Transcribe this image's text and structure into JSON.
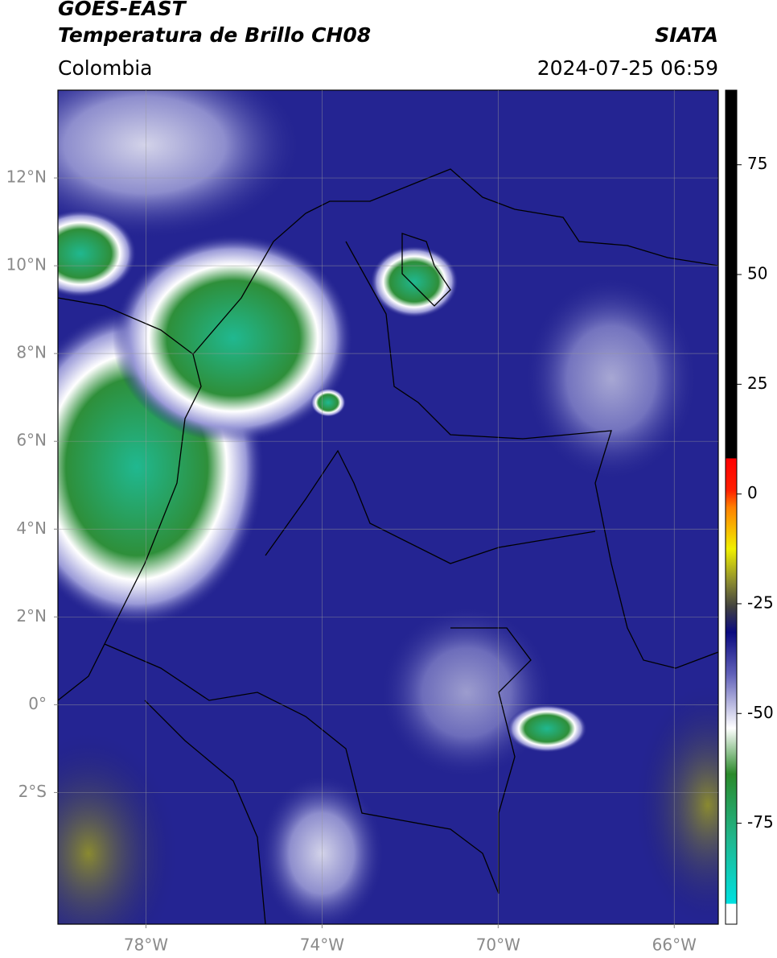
{
  "header": {
    "title": "GOES-EAST",
    "product": "Temperatura de Brillo CH08",
    "region": "Colombia",
    "source": "SIATA",
    "datetime": "2024-07-25 06:59"
  },
  "map": {
    "xlim": [
      -80,
      -65
    ],
    "ylim": [
      -5,
      14
    ],
    "xticks": [
      {
        "value": -78,
        "label": "78°W"
      },
      {
        "value": -74,
        "label": "74°W"
      },
      {
        "value": -70,
        "label": "70°W"
      },
      {
        "value": -66,
        "label": "66°W"
      }
    ],
    "yticks": [
      {
        "value": 12,
        "label": "12°N"
      },
      {
        "value": 10,
        "label": "10°N"
      },
      {
        "value": 8,
        "label": "8°N"
      },
      {
        "value": 6,
        "label": "6°N"
      },
      {
        "value": 4,
        "label": "4°N"
      },
      {
        "value": 2,
        "label": "2°N"
      },
      {
        "value": 0,
        "label": "0°"
      },
      {
        "value": -2,
        "label": "2°S"
      }
    ],
    "grid": true
  },
  "colorbar": {
    "lim": [
      -98,
      92
    ],
    "ticks": [
      75,
      50,
      25,
      0,
      -25,
      -50,
      -75
    ]
  }
}
